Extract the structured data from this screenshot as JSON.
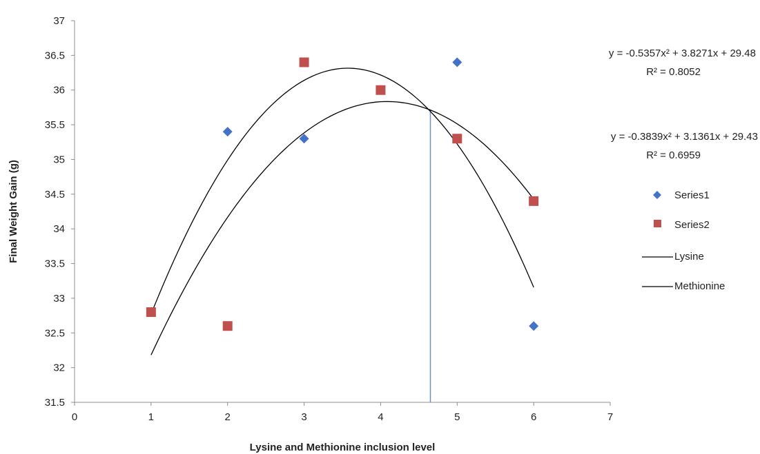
{
  "chart_data": {
    "type": "scatter",
    "xlabel": "Lysine and Methionine inclusion level",
    "ylabel": "Final Weight Gain (g)",
    "xlim": [
      0,
      7
    ],
    "ylim": [
      31.5,
      37
    ],
    "x_ticks": [
      "0",
      "1",
      "2",
      "3",
      "4",
      "5",
      "6",
      "7"
    ],
    "y_ticks": [
      "31.5",
      "32",
      "32.5",
      "33",
      "33.5",
      "34",
      "34.5",
      "35",
      "35.5",
      "36",
      "36.5",
      "37"
    ],
    "grid": false,
    "legend_position": "right",
    "series": [
      {
        "name": "Series1",
        "marker": "diamond",
        "color": "#4472C4",
        "points": [
          [
            1,
            32.8
          ],
          [
            2,
            35.4
          ],
          [
            3,
            35.3
          ],
          [
            4,
            36.0
          ],
          [
            5,
            36.4
          ],
          [
            6,
            32.6
          ]
        ]
      },
      {
        "name": "Series2",
        "marker": "square",
        "color": "#C0504D",
        "points": [
          [
            1,
            32.8
          ],
          [
            2,
            32.6
          ],
          [
            3,
            36.4
          ],
          [
            4,
            36.0
          ],
          [
            5,
            35.3
          ],
          [
            6,
            34.4
          ]
        ]
      }
    ],
    "trendlines": [
      {
        "name": "Lysine",
        "type": "polynomial-2",
        "coefficients": [
          -0.5357,
          3.8271,
          29.48
        ],
        "x_range": [
          1,
          6
        ],
        "color": "#000000",
        "equation": "y = -0.5357x² + 3.8271x + 29.48",
        "r2": "R² = 0.8052"
      },
      {
        "name": "Methionine",
        "type": "polynomial-2",
        "coefficients": [
          -0.3839,
          3.1361,
          29.43
        ],
        "x_range": [
          1,
          6
        ],
        "color": "#000000",
        "equation": "y = -0.3839x² + 3.1361x + 29.43",
        "r2": "R² = 0.6959"
      }
    ],
    "reference_line": {
      "x": 4.65,
      "y_from": 31.5,
      "y_to": 35.72,
      "color": "#6A8FC8"
    }
  }
}
